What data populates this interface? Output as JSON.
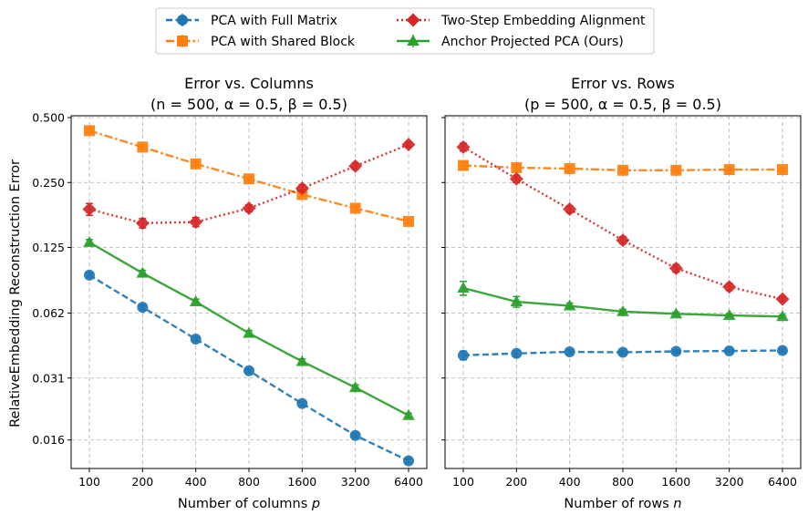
{
  "legend": [
    {
      "label": "PCA with Full Matrix",
      "color": "#1f77b4",
      "marker": "circle",
      "dash": "dashed"
    },
    {
      "label": "Two-Step Embedding Alignment",
      "color": "#d62728",
      "marker": "diamond",
      "dash": "dotted"
    },
    {
      "label": "PCA with Shared Block",
      "color": "#ff7f0e",
      "marker": "square",
      "dash": "dashdot"
    },
    {
      "label": "Anchor Projected PCA (Ours)",
      "color": "#2ca02c",
      "marker": "triangle",
      "dash": "solid"
    }
  ],
  "shared_ylabel": "RelativeEmbedding Reconstruction Error",
  "chart_data": [
    {
      "type": "line",
      "title_line1": "Error vs. Columns",
      "title_line2_text": "(n = 500, α = 0.5, β = 0.5)",
      "xlabel_text": "Number of columns ",
      "xlabel_var": "p",
      "x": [
        100,
        200,
        400,
        800,
        1600,
        3200,
        6400
      ],
      "xticks": [
        "100",
        "200",
        "400",
        "800",
        "1600",
        "3200",
        "6400"
      ],
      "yscale": "log",
      "ylim": [
        0.0118,
        0.51
      ],
      "yticks": [
        0.5,
        0.25,
        0.125,
        0.062,
        0.031,
        0.016
      ],
      "yticklabels": [
        "0.500",
        "0.250",
        "0.125",
        "0.062",
        "0.031",
        "0.016"
      ],
      "grid": true,
      "series": [
        {
          "name": "PCA with Full Matrix",
          "values": [
            0.093,
            0.066,
            0.047,
            0.0335,
            0.0236,
            0.0168,
            0.0128
          ],
          "err": [
            0.002,
            0.0015,
            0.001,
            0.0008,
            0.0005,
            0.0004,
            0.0003
          ]
        },
        {
          "name": "PCA with Shared Block",
          "values": [
            0.435,
            0.365,
            0.305,
            0.26,
            0.22,
            0.19,
            0.165
          ],
          "err": [
            0.008,
            0.007,
            0.006,
            0.005,
            0.004,
            0.004,
            0.003
          ]
        },
        {
          "name": "Two-Step Embedding Alignment",
          "values": [
            0.188,
            0.162,
            0.164,
            0.19,
            0.235,
            0.298,
            0.375
          ],
          "err": [
            0.012,
            0.008,
            0.008,
            0.007,
            0.009,
            0.01,
            0.01
          ]
        },
        {
          "name": "Anchor Projected PCA (Ours)",
          "values": [
            0.132,
            0.095,
            0.07,
            0.05,
            0.037,
            0.028,
            0.0208
          ],
          "err": [
            0.004,
            0.003,
            0.002,
            0.0015,
            0.001,
            0.0008,
            0.0005
          ]
        }
      ]
    },
    {
      "type": "line",
      "title_line1": "Error vs. Rows",
      "title_line2_text": "(p = 500, α = 0.5, β = 0.5)",
      "xlabel_text": "Number of rows ",
      "xlabel_var": "n",
      "x": [
        100,
        200,
        400,
        800,
        1600,
        3200,
        6400
      ],
      "xticks": [
        "100",
        "200",
        "400",
        "800",
        "1600",
        "3200",
        "6400"
      ],
      "yscale": "log",
      "ylim": [
        0.0118,
        0.51
      ],
      "yticks": [
        0.5,
        0.25,
        0.125,
        0.062,
        0.031,
        0.016
      ],
      "yticklabels": [
        "0.500",
        "0.250",
        "0.125",
        "0.062",
        "0.031",
        "0.016"
      ],
      "grid": true,
      "series": [
        {
          "name": "PCA with Full Matrix",
          "values": [
            0.0395,
            0.0403,
            0.041,
            0.0408,
            0.0412,
            0.0414,
            0.0416
          ],
          "err": [
            0.0018,
            0.0012,
            0.001,
            0.0008,
            0.0007,
            0.0006,
            0.0005
          ]
        },
        {
          "name": "PCA with Shared Block",
          "values": [
            0.3,
            0.293,
            0.29,
            0.285,
            0.285,
            0.287,
            0.287
          ],
          "err": [
            0.012,
            0.01,
            0.008,
            0.007,
            0.006,
            0.005,
            0.005
          ]
        },
        {
          "name": "Two-Step Embedding Alignment",
          "values": [
            0.365,
            0.26,
            0.188,
            0.135,
            0.1,
            0.082,
            0.072
          ],
          "err": [
            0.015,
            0.01,
            0.007,
            0.005,
            0.004,
            0.003,
            0.002
          ]
        },
        {
          "name": "Anchor Projected PCA (Ours)",
          "values": [
            0.081,
            0.07,
            0.067,
            0.063,
            0.0615,
            0.0605,
            0.0598
          ],
          "err": [
            0.006,
            0.004,
            0.002,
            0.0015,
            0.0012,
            0.001,
            0.001
          ]
        }
      ]
    }
  ]
}
